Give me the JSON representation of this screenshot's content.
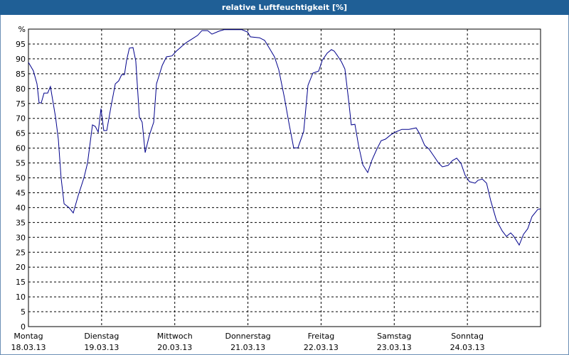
{
  "chart_data": {
    "type": "line",
    "title": "relative Luftfeuchtigkeit [%]",
    "x": [
      0,
      1.6,
      2.8,
      3.5,
      4.2,
      5.1,
      6.3,
      7.2,
      8.9,
      9.8,
      10.7,
      11.7,
      13.3,
      14.7,
      16.3,
      18.2,
      19.4,
      21,
      21.9,
      22.9,
      23.8,
      24.7,
      25.7,
      27.1,
      28.5,
      29.6,
      30.6,
      31.5,
      32.2,
      33.1,
      34.3,
      35.2,
      36.4,
      37.3,
      38.3,
      39.7,
      41.1,
      42,
      43.9,
      45.3,
      47.1,
      48.5,
      50.4,
      51.8,
      53.7,
      55.5,
      56.9,
      58.8,
      60.2,
      62.5,
      64.2,
      70,
      71.9,
      72.8,
      75.8,
      77.5,
      79.3,
      80.7,
      82.1,
      84,
      85.4,
      87,
      88.4,
      90.3,
      91.7,
      93.3,
      95.2,
      96.4,
      98,
      99.4,
      100.3,
      101.3,
      102.7,
      103.8,
      105,
      105.9,
      107.1,
      108.3,
      109.7,
      111.3,
      112.7,
      114.3,
      115.7,
      117.1,
      118.8,
      120.4,
      122.5,
      124.8,
      127.2,
      128.3,
      130,
      131.4,
      133,
      134.6,
      135.8,
      137.7,
      139.1,
      140.5,
      141.9,
      143.3,
      144.7,
      146.5,
      147.5,
      148.9,
      150.3,
      151.7,
      153.5,
      155.4,
      156.8,
      158.2,
      159.1,
      161,
      162.4,
      163.8,
      165.2,
      167.1,
      168
    ],
    "series": [
      {
        "color": "#00008b",
        "values": [
          88.8,
          86,
          81.6,
          75.2,
          75.2,
          78.5,
          78.5,
          80.7,
          70.4,
          63,
          50,
          41.3,
          40,
          38.2,
          44,
          50,
          55,
          67.8,
          67.3,
          65.4,
          73.3,
          65.9,
          65.9,
          74,
          81.6,
          82.6,
          84.7,
          84.7,
          89.5,
          93.6,
          93.8,
          89.3,
          70.4,
          68.7,
          58.5,
          64.4,
          68.7,
          81.6,
          87.8,
          90.7,
          91,
          92.6,
          94.3,
          95.5,
          96.7,
          97.9,
          99.5,
          99.5,
          98.3,
          99.3,
          99.8,
          99.8,
          99,
          97.4,
          97.1,
          96.2,
          93.1,
          90.7,
          86.4,
          76.8,
          68.7,
          60.1,
          60.1,
          65.6,
          81.1,
          85.2,
          85.9,
          89.5,
          91.9,
          93.1,
          92.6,
          91.2,
          89,
          86.6,
          76.4,
          67.8,
          68,
          60.9,
          54.4,
          51.8,
          56,
          59.7,
          62.5,
          63,
          64.4,
          65.4,
          66.3,
          66.3,
          66.8,
          64.9,
          60.9,
          59.7,
          57.3,
          54.9,
          53.7,
          54.2,
          55.8,
          56.6,
          54.9,
          50.8,
          48.7,
          48.2,
          49.2,
          49.6,
          48.2,
          42.2,
          35.8,
          32.2,
          30.3,
          31.5,
          30.5,
          27.4,
          31,
          32.9,
          37,
          39.4,
          39.6
        ]
      }
    ],
    "xlim": [
      0,
      168
    ],
    "xticks": [
      {
        "value": 0,
        "label": "Montag"
      },
      {
        "value": 24,
        "label": "Dienstag"
      },
      {
        "value": 48,
        "label": "Mittwoch"
      },
      {
        "value": 72,
        "label": "Donnerstag"
      },
      {
        "value": 96,
        "label": "Freitag"
      },
      {
        "value": 120,
        "label": "Samstag"
      },
      {
        "value": 144,
        "label": "Sonntag"
      }
    ],
    "xtick_dates": [
      "18.03.13",
      "19.03.13",
      "20.03.13",
      "21.03.13",
      "22.03.13",
      "23.03.13",
      "24.03.13"
    ],
    "ylim": [
      0,
      100
    ],
    "yticks": [
      0,
      5,
      10,
      15,
      20,
      25,
      30,
      35,
      40,
      45,
      50,
      55,
      60,
      65,
      70,
      75,
      80,
      85,
      90,
      95,
      {
        "value": 100,
        "label": "%"
      }
    ],
    "grid": true
  }
}
